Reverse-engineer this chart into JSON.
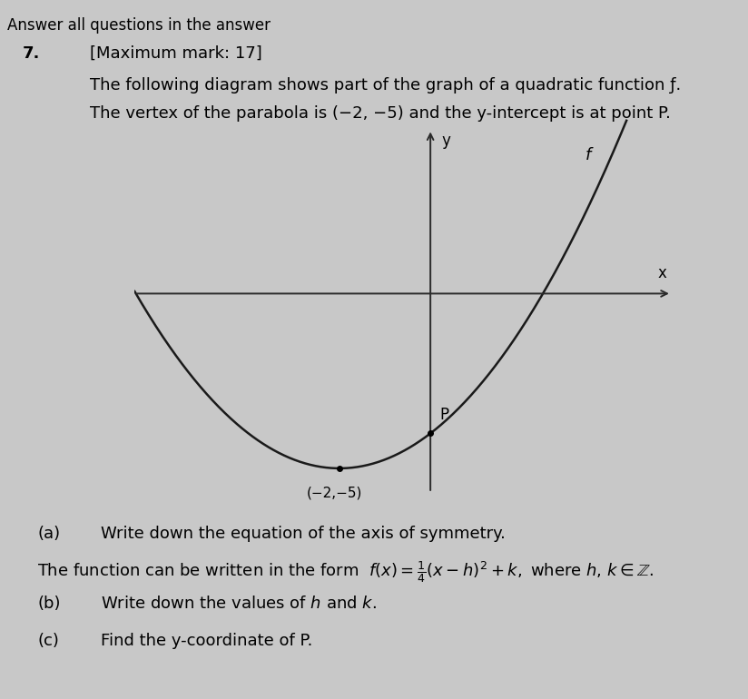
{
  "background_color": "#c8c8c8",
  "diagram_bg": "#e8e8e8",
  "header_text": "Answer all questions in the answer",
  "question_number": "7.",
  "max_mark": "[Maximum mark: 17]",
  "description_line1": "The following diagram shows part of the graph of a quadratic function ƒ.",
  "description_line2": "The vertex of the parabola is (−2, −5) and the y-intercept is at point P.",
  "vertex": [
    -2,
    -5
  ],
  "a_coeff": 0.25,
  "x_range": [
    -6.5,
    5.5
  ],
  "y_range": [
    -6.2,
    5.0
  ],
  "curve_color": "#1a1a1a",
  "curve_linewidth": 1.8,
  "axis_linewidth": 1.4,
  "label_f": "f",
  "label_y": "y",
  "label_x": "x",
  "label_P": "P",
  "label_vertex": "(−2,−5)",
  "part_a_text": "Write down the equation of the axis of symmetry.",
  "part_b_intro": "The function can be written in the form",
  "part_b_text": "Write down the values of h and k.",
  "part_c_text": "Find the y-coordinate of P.",
  "font_size_body": 13,
  "font_size_axis_label": 12,
  "font_size_annotations": 11
}
